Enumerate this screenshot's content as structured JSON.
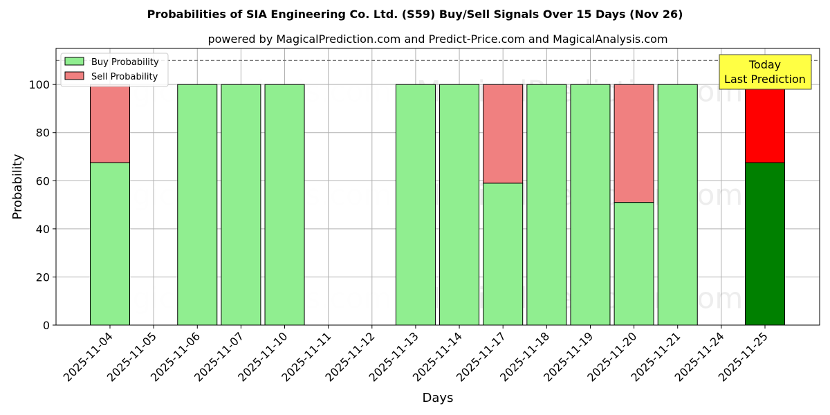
{
  "chart_data": {
    "type": "bar",
    "stacked": true,
    "title": "Probabilities of SIA Engineering Co. Ltd. (S59) Buy/Sell Signals Over 15 Days (Nov 26)",
    "subtitle": "powered by MagicalPrediction.com and Predict-Price.com and MagicalAnalysis.com",
    "xlabel": "Days",
    "ylabel": "Probability",
    "ylim": [
      0,
      115
    ],
    "yticks": [
      0,
      20,
      40,
      60,
      80,
      100
    ],
    "grid": true,
    "legend_position": "top-left",
    "categories": [
      "2025-11-04",
      "2025-11-05",
      "2025-11-06",
      "2025-11-07",
      "2025-11-10",
      "2025-11-11",
      "2025-11-12",
      "2025-11-13",
      "2025-11-14",
      "2025-11-17",
      "2025-11-18",
      "2025-11-19",
      "2025-11-20",
      "2025-11-21",
      "2025-11-24",
      "2025-11-25"
    ],
    "series": [
      {
        "name": "Buy Probability",
        "color": "#90ee90",
        "values": [
          67.5,
          null,
          100,
          100,
          100,
          null,
          null,
          100,
          100,
          59,
          100,
          100,
          51,
          100,
          null,
          67.5
        ]
      },
      {
        "name": "Sell Probability",
        "color": "#f08080",
        "values": [
          32.5,
          null,
          0,
          0,
          0,
          null,
          null,
          0,
          0,
          41,
          0,
          0,
          49,
          0,
          null,
          32.5
        ]
      }
    ],
    "highlight": {
      "category": "2025-11-25",
      "buy_color": "#008000",
      "sell_color": "#ff0000"
    },
    "reference_line": {
      "y": 110,
      "style": "dashed"
    },
    "annotation": {
      "line1": "Today",
      "line2": "Last Prediction",
      "background": "#ffff44"
    },
    "watermarks": [
      "MagicalAnalysis.com",
      "MagicalPrediction.com"
    ]
  }
}
